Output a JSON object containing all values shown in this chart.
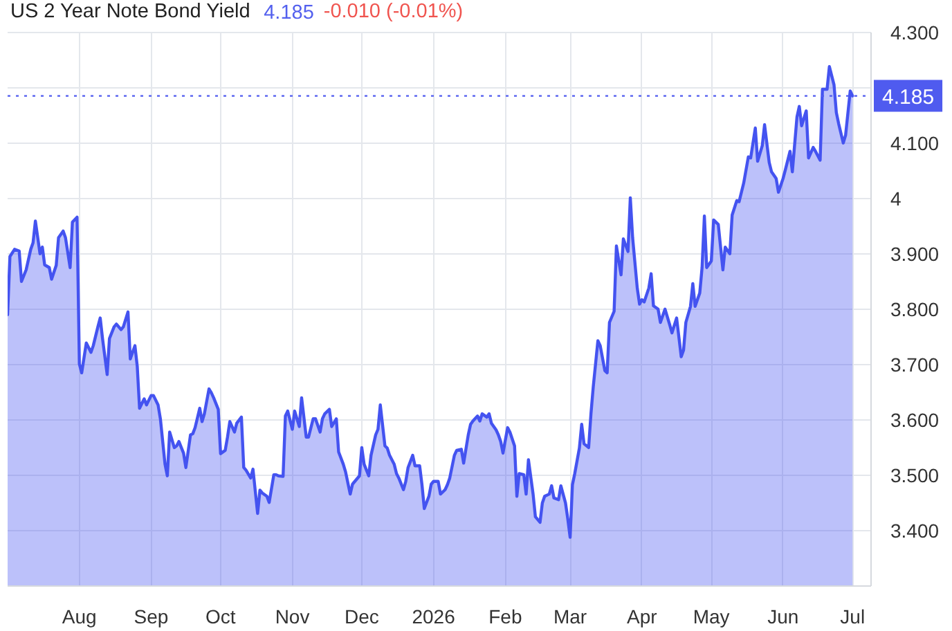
{
  "chart_data": {
    "type": "area",
    "title": "US 2 Year Note Bond Yield",
    "annotations": [
      "4.185",
      "-0.010 (-0.01%)"
    ],
    "color": "#4453f0",
    "x": [
      "2025-07-01",
      "2025-07-02",
      "2025-07-04",
      "2025-07-06",
      "2025-07-07",
      "2025-07-09",
      "2025-07-11",
      "2025-07-12",
      "2025-07-13",
      "2025-07-15",
      "2025-07-16",
      "2025-07-17",
      "2025-07-19",
      "2025-07-20",
      "2025-07-22",
      "2025-07-23",
      "2025-07-25",
      "2025-07-26",
      "2025-07-28",
      "2025-07-29",
      "2025-07-31",
      "2025-08-01",
      "2025-08-02",
      "2025-08-04",
      "2025-08-06",
      "2025-08-07",
      "2025-08-09",
      "2025-08-10",
      "2025-08-11",
      "2025-08-13",
      "2025-08-14",
      "2025-08-16",
      "2025-08-17",
      "2025-08-19",
      "2025-08-20",
      "2025-08-22",
      "2025-08-23",
      "2025-08-25",
      "2025-08-26",
      "2025-08-27",
      "2025-08-29",
      "2025-08-30",
      "2025-09-01",
      "2025-09-02",
      "2025-09-04",
      "2025-09-05",
      "2025-09-07",
      "2025-09-08",
      "2025-09-09",
      "2025-09-11",
      "2025-09-12",
      "2025-09-13",
      "2025-09-15",
      "2025-09-16",
      "2025-09-18",
      "2025-09-19",
      "2025-09-20",
      "2025-09-22",
      "2025-09-23",
      "2025-09-24",
      "2025-09-26",
      "2025-09-27",
      "2025-09-28",
      "2025-09-30",
      "2025-10-01",
      "2025-10-03",
      "2025-10-04",
      "2025-10-05",
      "2025-10-07",
      "2025-10-08",
      "2025-10-10",
      "2025-10-11",
      "2025-10-12",
      "2025-10-14",
      "2025-10-15",
      "2025-10-17",
      "2025-10-18",
      "2025-10-19",
      "2025-10-21",
      "2025-10-22",
      "2025-10-24",
      "2025-10-25",
      "2025-10-26",
      "2025-10-28",
      "2025-10-29",
      "2025-10-30",
      "2025-11-01",
      "2025-11-02",
      "2025-11-04",
      "2025-11-05",
      "2025-11-07",
      "2025-11-08",
      "2025-11-10",
      "2025-11-11",
      "2025-11-13",
      "2025-11-14",
      "2025-11-15",
      "2025-11-17",
      "2025-11-18",
      "2025-11-20",
      "2025-11-21",
      "2025-11-23",
      "2025-11-24",
      "2025-11-26",
      "2025-11-27",
      "2025-11-28",
      "2025-11-30",
      "2025-12-01",
      "2025-12-02",
      "2025-12-04",
      "2025-12-05",
      "2025-12-07",
      "2025-12-08",
      "2025-12-09",
      "2025-12-11",
      "2025-12-12",
      "2025-12-13",
      "2025-12-15",
      "2025-12-16",
      "2025-12-17",
      "2025-12-19",
      "2025-12-20",
      "2025-12-21",
      "2025-12-23",
      "2025-12-24",
      "2025-12-26",
      "2025-12-27",
      "2025-12-28",
      "2025-12-30",
      "2025-12-31",
      "2026-01-01",
      "2026-01-03",
      "2026-01-04",
      "2026-01-06",
      "2026-01-07",
      "2026-01-08",
      "2026-01-10",
      "2026-01-11",
      "2026-01-13",
      "2026-01-14",
      "2026-01-16",
      "2026-01-17",
      "2026-01-18",
      "2026-01-20",
      "2026-01-21",
      "2026-01-22",
      "2026-01-24",
      "2026-01-25",
      "2026-01-26",
      "2026-01-28",
      "2026-01-29",
      "2026-01-30",
      "2026-01-31",
      "2026-02-02",
      "2026-02-03",
      "2026-02-05",
      "2026-02-06",
      "2026-02-07",
      "2026-02-09",
      "2026-02-10",
      "2026-02-11",
      "2026-02-13",
      "2026-02-14",
      "2026-02-16",
      "2026-02-17",
      "2026-02-18",
      "2026-02-20",
      "2026-02-21",
      "2026-02-22",
      "2026-02-24",
      "2026-02-25",
      "2026-02-27",
      "2026-02-28",
      "2026-03-01",
      "2026-03-02",
      "2026-03-03",
      "2026-03-05",
      "2026-03-06",
      "2026-03-07",
      "2026-03-09",
      "2026-03-10",
      "2026-03-11",
      "2026-03-13",
      "2026-03-14",
      "2026-03-16",
      "2026-03-17",
      "2026-03-18",
      "2026-03-20",
      "2026-03-21",
      "2026-03-23",
      "2026-03-24",
      "2026-03-26",
      "2026-03-27",
      "2026-03-28",
      "2026-03-30",
      "2026-03-31",
      "2026-04-01",
      "2026-04-02",
      "2026-04-04",
      "2026-04-05",
      "2026-04-06",
      "2026-04-08",
      "2026-04-09",
      "2026-04-11",
      "2026-04-13",
      "2026-04-14",
      "2026-04-16",
      "2026-04-18",
      "2026-04-19",
      "2026-04-20",
      "2026-04-22",
      "2026-04-23",
      "2026-04-24",
      "2026-04-26",
      "2026-04-27",
      "2026-04-28",
      "2026-04-29",
      "2026-05-01",
      "2026-05-02",
      "2026-05-04",
      "2026-05-06",
      "2026-05-07",
      "2026-05-09",
      "2026-05-10",
      "2026-05-12",
      "2026-05-13",
      "2026-05-15",
      "2026-05-17",
      "2026-05-18",
      "2026-05-20",
      "2026-05-21",
      "2026-05-23",
      "2026-05-24",
      "2026-05-26",
      "2026-05-27",
      "2026-05-29",
      "2026-05-30",
      "2026-06-01",
      "2026-06-02",
      "2026-06-04",
      "2026-06-05",
      "2026-06-07",
      "2026-06-08",
      "2026-06-09",
      "2026-06-11",
      "2026-06-12",
      "2026-06-14",
      "2026-06-15",
      "2026-06-17",
      "2026-06-18",
      "2026-06-20",
      "2026-06-21",
      "2026-06-23",
      "2026-06-24",
      "2026-06-25",
      "2026-06-27",
      "2026-06-28",
      "2026-06-30",
      "2026-07-01"
    ],
    "values": [
      3.79,
      3.895,
      3.908,
      3.905,
      3.85,
      3.871,
      3.908,
      3.92,
      3.959,
      3.9,
      3.912,
      3.88,
      3.875,
      3.854,
      3.879,
      3.929,
      3.941,
      3.929,
      3.875,
      3.957,
      3.966,
      3.701,
      3.685,
      3.739,
      3.722,
      3.734,
      3.768,
      3.784,
      3.747,
      3.682,
      3.747,
      3.768,
      3.773,
      3.763,
      3.768,
      3.795,
      3.71,
      3.734,
      3.697,
      3.621,
      3.638,
      3.627,
      3.644,
      3.644,
      3.627,
      3.602,
      3.52,
      3.499,
      3.578,
      3.55,
      3.553,
      3.561,
      3.54,
      3.514,
      3.573,
      3.575,
      3.586,
      3.621,
      3.597,
      3.611,
      3.656,
      3.649,
      3.64,
      3.619,
      3.539,
      3.545,
      3.569,
      3.597,
      3.578,
      3.594,
      3.605,
      3.514,
      3.509,
      3.495,
      3.511,
      3.431,
      3.473,
      3.468,
      3.462,
      3.451,
      3.501,
      3.501,
      3.499,
      3.498,
      3.607,
      3.616,
      3.583,
      3.616,
      3.588,
      3.64,
      3.569,
      3.569,
      3.602,
      3.602,
      3.578,
      3.602,
      3.611,
      3.619,
      3.588,
      3.602,
      3.542,
      3.52,
      3.506,
      3.466,
      3.484,
      3.489,
      3.499,
      3.55,
      3.52,
      3.499,
      3.536,
      3.573,
      3.583,
      3.627,
      3.553,
      3.549,
      3.536,
      3.52,
      3.503,
      3.495,
      3.474,
      3.489,
      3.514,
      3.536,
      3.517,
      3.517,
      3.483,
      3.44,
      3.462,
      3.484,
      3.489,
      3.489,
      3.466,
      3.474,
      3.483,
      3.495,
      3.536,
      3.545,
      3.547,
      3.522,
      3.573,
      3.592,
      3.598,
      3.607,
      3.598,
      3.611,
      3.605,
      3.611,
      3.594,
      3.582,
      3.573,
      3.561,
      3.54,
      3.586,
      3.578,
      3.553,
      3.462,
      3.503,
      3.501,
      3.466,
      3.528,
      3.466,
      3.425,
      3.415,
      3.45,
      3.462,
      3.466,
      3.481,
      3.459,
      3.456,
      3.481,
      3.45,
      3.421,
      3.388,
      3.483,
      3.503,
      3.549,
      3.592,
      3.557,
      3.55,
      3.611,
      3.66,
      3.743,
      3.734,
      3.689,
      3.685,
      3.776,
      3.796,
      3.914,
      3.862,
      3.927,
      3.904,
      4.001,
      3.929,
      3.838,
      3.809,
      3.817,
      3.813,
      3.838,
      3.864,
      3.806,
      3.8,
      3.776,
      3.8,
      3.772,
      3.757,
      3.784,
      3.714,
      3.726,
      3.776,
      3.805,
      3.846,
      3.805,
      3.829,
      3.875,
      3.968,
      3.875,
      3.887,
      3.961,
      3.953,
      3.871,
      3.912,
      3.9,
      3.97,
      3.996,
      3.994,
      4.028,
      4.075,
      4.073,
      4.127,
      4.067,
      4.095,
      4.133,
      4.065,
      4.048,
      4.036,
      4.011,
      4.036,
      4.052,
      4.085,
      4.048,
      4.147,
      4.166,
      4.131,
      4.158,
      4.073,
      4.092,
      4.085,
      4.069,
      4.197,
      4.197,
      4.238,
      4.205,
      4.155,
      4.135,
      4.1,
      4.114,
      4.194,
      4.185
    ],
    "xlim": [
      "2025-07-01",
      "2026-07-09"
    ],
    "xticks": [
      {
        "value": "2025-08-01",
        "label": "Aug"
      },
      {
        "value": "2025-09-01",
        "label": "Sep"
      },
      {
        "value": "2025-10-01",
        "label": "Oct"
      },
      {
        "value": "2025-11-01",
        "label": "Nov"
      },
      {
        "value": "2025-12-01",
        "label": "Dec"
      },
      {
        "value": "2026-01-01",
        "label": "2026"
      },
      {
        "value": "2026-02-01",
        "label": "Feb"
      },
      {
        "value": "2026-03-01",
        "label": "Mar"
      },
      {
        "value": "2026-04-01",
        "label": "Apr"
      },
      {
        "value": "2026-05-01",
        "label": "May"
      },
      {
        "value": "2026-06-01",
        "label": "Jun"
      },
      {
        "value": "2026-07-01",
        "label": "Jul"
      }
    ],
    "ylim": [
      3.3,
      4.3
    ],
    "yticks": [
      {
        "value": 3.4,
        "label": "3.400"
      },
      {
        "value": 3.5,
        "label": "3.500"
      },
      {
        "value": 3.6,
        "label": "3.600"
      },
      {
        "value": 3.7,
        "label": "3.700"
      },
      {
        "value": 3.8,
        "label": "3.800"
      },
      {
        "value": 3.9,
        "label": "3.900"
      },
      4,
      {
        "value": 4.1,
        "label": "4.100"
      },
      {
        "value": 4.2,
        "label": null
      },
      {
        "value": 4.3,
        "label": "4.300"
      }
    ],
    "ref_lines": [
      {
        "axis": "y",
        "value": 4.185,
        "label": "4.185",
        "color": "#4f5bef",
        "line_style": "dotted"
      }
    ],
    "grid": true
  }
}
